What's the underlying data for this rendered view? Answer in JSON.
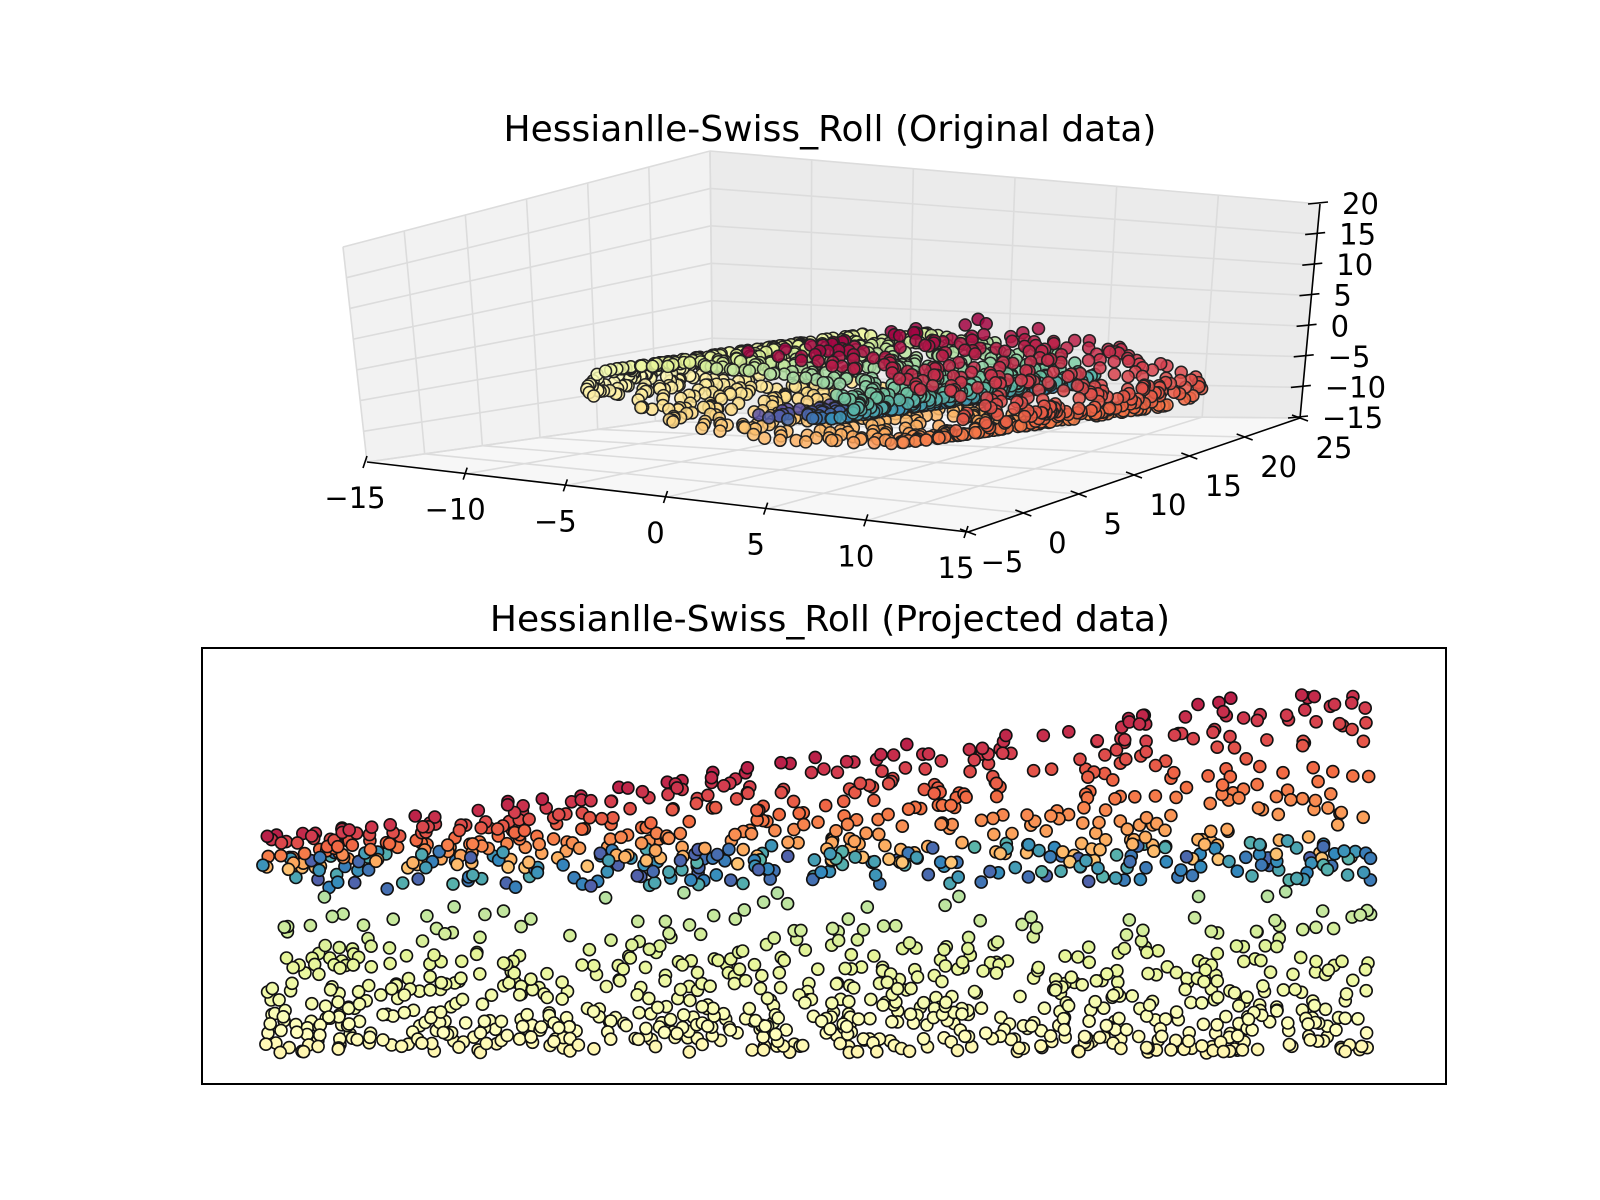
{
  "chart_data": [
    {
      "type": "scatter",
      "projection": "3d",
      "title": "Hessianlle-Swiss_Roll (Original data)",
      "colormap": "Spectral",
      "xlim": [
        -15,
        15
      ],
      "ylim": [
        -5,
        25
      ],
      "zlim": [
        -15,
        20
      ],
      "x_ticks": [
        "−15",
        "−10",
        "−5",
        "0",
        "5",
        "10",
        "15"
      ],
      "y_ticks": [
        "−5",
        "0",
        "5",
        "10",
        "15",
        "20",
        "25"
      ],
      "z_ticks": [
        "−15",
        "−10",
        "−5",
        "0",
        "5",
        "10",
        "15",
        "20"
      ],
      "grid": true,
      "n_points_shown": 1500
    },
    {
      "type": "scatter",
      "title": "Hessianlle-Swiss_Roll (Projected data)",
      "colormap": "Spectral",
      "axes_ticks": false,
      "n_points_shown": 1500
    }
  ]
}
